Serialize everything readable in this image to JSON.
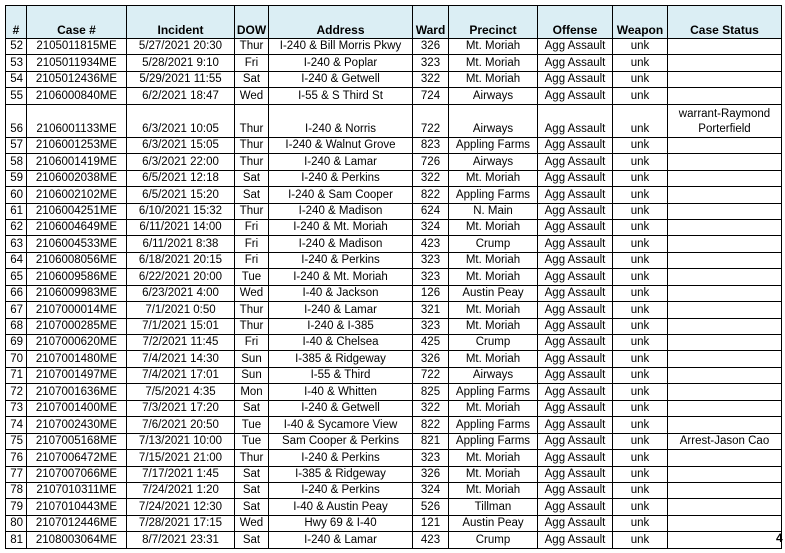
{
  "table": {
    "headers": [
      "#",
      "Case #",
      "Incident",
      "DOW",
      "Address",
      "Ward",
      "Precinct",
      "Offense",
      "Weapon",
      "Case Status"
    ],
    "rows": [
      [
        "52",
        "2105011815ME",
        "5/27/2021 20:30",
        "Thur",
        "I-240 & Bill Morris Pkwy",
        "326",
        "Mt. Moriah",
        "Agg Assault",
        "unk",
        ""
      ],
      [
        "53",
        "2105011934ME",
        "5/28/2021 9:10",
        "Fri",
        "I-240 & Poplar",
        "323",
        "Mt. Moriah",
        "Agg Assault",
        "unk",
        ""
      ],
      [
        "54",
        "2105012436ME",
        "5/29/2021 11:55",
        "Sat",
        "I-240 & Getwell",
        "322",
        "Mt. Moriah",
        "Agg Assault",
        "unk",
        ""
      ],
      [
        "55",
        "2106000840ME",
        "6/2/2021 18:47",
        "Wed",
        "I-55 & S Third St",
        "724",
        "Airways",
        "Agg Assault",
        "unk",
        ""
      ],
      [
        "56",
        "2106001133ME",
        "6/3/2021 10:05",
        "Thur",
        "I-240 & Norris",
        "722",
        "Airways",
        "Agg Assault",
        "unk",
        "warrant-Raymond Porterfield"
      ],
      [
        "57",
        "2106001253ME",
        "6/3/2021 15:05",
        "Thur",
        "I-240 & Walnut Grove",
        "823",
        "Appling Farms",
        "Agg Assault",
        "unk",
        ""
      ],
      [
        "58",
        "2106001419ME",
        "6/3/2021 22:00",
        "Thur",
        "I-240 & Lamar",
        "726",
        "Airways",
        "Agg Assault",
        "unk",
        ""
      ],
      [
        "59",
        "2106002038ME",
        "6/5/2021 12:18",
        "Sat",
        "I-240 & Perkins",
        "322",
        "Mt. Moriah",
        "Agg Assault",
        "unk",
        ""
      ],
      [
        "60",
        "2106002102ME",
        "6/5/2021 15:20",
        "Sat",
        "I-240 & Sam Cooper",
        "822",
        "Appling Farms",
        "Agg Assault",
        "unk",
        ""
      ],
      [
        "61",
        "2106004251ME",
        "6/10/2021 15:32",
        "Thur",
        "I-240 & Madison",
        "624",
        "N. Main",
        "Agg Assault",
        "unk",
        ""
      ],
      [
        "62",
        "2106004649ME",
        "6/11/2021 14:00",
        "Fri",
        "I-240 & Mt. Moriah",
        "324",
        "Mt. Moriah",
        "Agg Assault",
        "unk",
        ""
      ],
      [
        "63",
        "2106004533ME",
        "6/11/2021 8:38",
        "Fri",
        "I-240 & Madison",
        "423",
        "Crump",
        "Agg Assault",
        "unk",
        ""
      ],
      [
        "64",
        "2106008056ME",
        "6/18/2021 20:15",
        "Fri",
        "I-240 & Perkins",
        "323",
        "Mt. Moriah",
        "Agg Assault",
        "unk",
        ""
      ],
      [
        "65",
        "2106009586ME",
        "6/22/2021 20:00",
        "Tue",
        "I-240 & Mt. Moriah",
        "323",
        "Mt. Moriah",
        "Agg Assault",
        "unk",
        ""
      ],
      [
        "66",
        "2106009983ME",
        "6/23/2021 4:00",
        "Wed",
        "I-40 & Jackson",
        "126",
        "Austin Peay",
        "Agg Assault",
        "unk",
        ""
      ],
      [
        "67",
        "2107000014ME",
        "7/1/2021 0:50",
        "Thur",
        "I-240 & Lamar",
        "321",
        "Mt. Moriah",
        "Agg Assault",
        "unk",
        ""
      ],
      [
        "68",
        "2107000285ME",
        "7/1/2021 15:01",
        "Thur",
        "I-240 & I-385",
        "323",
        "Mt. Moriah",
        "Agg Assault",
        "unk",
        ""
      ],
      [
        "69",
        "2107000620ME",
        "7/2/2021 11:45",
        "Fri",
        "I-40 & Chelsea",
        "425",
        "Crump",
        "Agg Assault",
        "unk",
        ""
      ],
      [
        "70",
        "2107001480ME",
        "7/4/2021 14:30",
        "Sun",
        "I-385 & Ridgeway",
        "326",
        "Mt. Moriah",
        "Agg Assault",
        "unk",
        ""
      ],
      [
        "71",
        "2107001497ME",
        "7/4/2021 17:01",
        "Sun",
        "I-55 & Third",
        "722",
        "Airways",
        "Agg Assault",
        "unk",
        ""
      ],
      [
        "72",
        "2107001636ME",
        "7/5/2021 4:35",
        "Mon",
        "I-40 & Whitten",
        "825",
        "Appling Farms",
        "Agg Assault",
        "unk",
        ""
      ],
      [
        "73",
        "2107001400ME",
        "7/3/2021 17:20",
        "Sat",
        "I-240 & Getwell",
        "322",
        "Mt. Moriah",
        "Agg Assault",
        "unk",
        ""
      ],
      [
        "74",
        "2107002430ME",
        "7/6/2021 20:50",
        "Tue",
        "I-40 & Sycamore View",
        "822",
        "Appling Farms",
        "Agg Assault",
        "unk",
        ""
      ],
      [
        "75",
        "2107005168ME",
        "7/13/2021 10:00",
        "Tue",
        "Sam Cooper & Perkins",
        "821",
        "Appling Farms",
        "Agg Assault",
        "unk",
        "Arrest-Jason Cao"
      ],
      [
        "76",
        "2107006472ME",
        "7/15/2021 21:00",
        "Thur",
        "I-240 & Perkins",
        "323",
        "Mt. Moriah",
        "Agg Assault",
        "unk",
        ""
      ],
      [
        "77",
        "2107007066ME",
        "7/17/2021 1:45",
        "Sat",
        "I-385 & Ridgeway",
        "326",
        "Mt. Moriah",
        "Agg Assault",
        "unk",
        ""
      ],
      [
        "78",
        "2107010311ME",
        "7/24/2021 1:20",
        "Sat",
        "I-240 & Perkins",
        "324",
        "Mt. Moriah",
        "Agg Assault",
        "unk",
        ""
      ],
      [
        "79",
        "2107010443ME",
        "7/24/2021 12:30",
        "Sat",
        "I-40 & Austin Peay",
        "526",
        "Tillman",
        "Agg Assault",
        "unk",
        ""
      ],
      [
        "80",
        "2107012446ME",
        "7/28/2021 17:15",
        "Wed",
        "Hwy 69 & I-40",
        "121",
        "Austin Peay",
        "Agg Assault",
        "unk",
        ""
      ],
      [
        "81",
        "2108003064ME",
        "8/7/2021 23:31",
        "Sat",
        "I-240 & Lamar",
        "423",
        "Crump",
        "Agg Assault",
        "unk",
        ""
      ]
    ]
  },
  "page_number": "4"
}
